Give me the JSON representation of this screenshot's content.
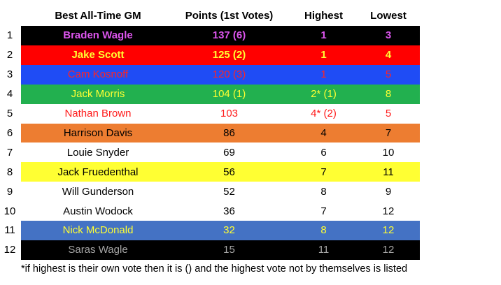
{
  "table": {
    "header": [
      "Best All-Time GM",
      "Points (1st Votes)",
      "Highest",
      "Lowest"
    ],
    "rows": [
      [
        "1",
        "Braden Wagle",
        "137 (6)",
        "1",
        "3"
      ],
      [
        "2",
        "Jake Scott",
        "125 (2)",
        "1",
        "4"
      ],
      [
        "3",
        "Cam Kosnoff",
        "120 (3)",
        "1",
        "5"
      ],
      [
        "4",
        "Jack Morris",
        "104 (1)",
        "2* (1)",
        "8"
      ],
      [
        "5",
        "Nathan Brown",
        "103",
        "4* (2)",
        "5"
      ],
      [
        "6",
        "Harrison Davis",
        "86",
        "4",
        "7"
      ],
      [
        "7",
        "Louie Snyder",
        "69",
        "6",
        "10"
      ],
      [
        "8",
        "Jack Fruedenthal",
        "56",
        "7",
        "11"
      ],
      [
        "9",
        "Will Gunderson",
        "52",
        "8",
        "9"
      ],
      [
        "10",
        "Austin Wodock",
        "36",
        "7",
        "12"
      ],
      [
        "11",
        "Nick McDonald",
        "32",
        "8",
        "12"
      ],
      [
        "12",
        "Saras Wagle",
        "15",
        "11",
        "12"
      ]
    ]
  },
  "footnote": "*if highest is their own vote then it is () and the highest vote not by themselves is listed"
}
